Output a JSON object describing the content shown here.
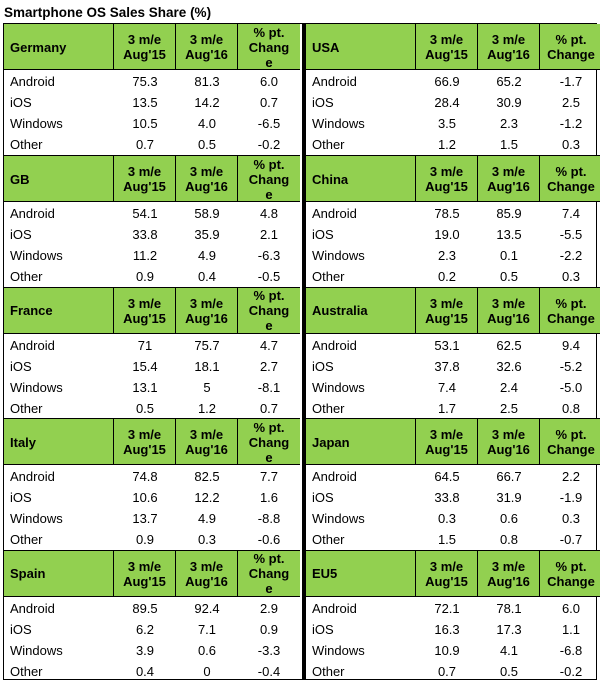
{
  "title": "Smartphone OS Sales Share (%)",
  "headers": {
    "col1_line1": "3 m/e",
    "col1_line2": "Aug'15",
    "col2_line1": "3 m/e",
    "col2_line2": "Aug'16",
    "change_full_line1": "% pt.",
    "change_full_line2": "Change",
    "change_wrap_line1": "% pt.",
    "change_wrap_line2": "Chang",
    "change_wrap_line3": "e"
  },
  "regions": [
    {
      "name": "Germany",
      "rows": [
        [
          "Android",
          "75.3",
          "81.3",
          "6.0"
        ],
        [
          "iOS",
          "13.5",
          "14.2",
          "0.7"
        ],
        [
          "Windows",
          "10.5",
          "4.0",
          "-6.5"
        ],
        [
          "Other",
          "0.7",
          "0.5",
          "-0.2"
        ]
      ]
    },
    {
      "name": "USA",
      "rows": [
        [
          "Android",
          "66.9",
          "65.2",
          "-1.7"
        ],
        [
          "iOS",
          "28.4",
          "30.9",
          "2.5"
        ],
        [
          "Windows",
          "3.5",
          "2.3",
          "-1.2"
        ],
        [
          "Other",
          "1.2",
          "1.5",
          "0.3"
        ]
      ]
    },
    {
      "name": "GB",
      "rows": [
        [
          "Android",
          "54.1",
          "58.9",
          "4.8"
        ],
        [
          "iOS",
          "33.8",
          "35.9",
          "2.1"
        ],
        [
          "Windows",
          "11.2",
          "4.9",
          "-6.3"
        ],
        [
          "Other",
          "0.9",
          "0.4",
          "-0.5"
        ]
      ]
    },
    {
      "name": "China",
      "rows": [
        [
          "Android",
          "78.5",
          "85.9",
          "7.4"
        ],
        [
          "iOS",
          "19.0",
          "13.5",
          "-5.5"
        ],
        [
          "Windows",
          "2.3",
          "0.1",
          "-2.2"
        ],
        [
          "Other",
          "0.2",
          "0.5",
          "0.3"
        ]
      ]
    },
    {
      "name": "France",
      "rows": [
        [
          "Android",
          "71",
          "75.7",
          "4.7"
        ],
        [
          "iOS",
          "15.4",
          "18.1",
          "2.7"
        ],
        [
          "Windows",
          "13.1",
          "5",
          "-8.1"
        ],
        [
          "Other",
          "0.5",
          "1.2",
          "0.7"
        ]
      ]
    },
    {
      "name": "Australia",
      "rows": [
        [
          "Android",
          "53.1",
          "62.5",
          "9.4"
        ],
        [
          "iOS",
          "37.8",
          "32.6",
          "-5.2"
        ],
        [
          "Windows",
          "7.4",
          "2.4",
          "-5.0"
        ],
        [
          "Other",
          "1.7",
          "2.5",
          "0.8"
        ]
      ]
    },
    {
      "name": "Italy",
      "rows": [
        [
          "Android",
          "74.8",
          "82.5",
          "7.7"
        ],
        [
          "iOS",
          "10.6",
          "12.2",
          "1.6"
        ],
        [
          "Windows",
          "13.7",
          "4.9",
          "-8.8"
        ],
        [
          "Other",
          "0.9",
          "0.3",
          "-0.6"
        ]
      ]
    },
    {
      "name": "Japan",
      "rows": [
        [
          "Android",
          "64.5",
          "66.7",
          "2.2"
        ],
        [
          "iOS",
          "33.8",
          "31.9",
          "-1.9"
        ],
        [
          "Windows",
          "0.3",
          "0.6",
          "0.3"
        ],
        [
          "Other",
          "1.5",
          "0.8",
          "-0.7"
        ]
      ]
    },
    {
      "name": "Spain",
      "rows": [
        [
          "Android",
          "89.5",
          "92.4",
          "2.9"
        ],
        [
          "iOS",
          "6.2",
          "7.1",
          "0.9"
        ],
        [
          "Windows",
          "3.9",
          "0.6",
          "-3.3"
        ],
        [
          "Other",
          "0.4",
          "0",
          "-0.4"
        ]
      ]
    },
    {
      "name": "EU5",
      "rows": [
        [
          "Android",
          "72.1",
          "78.1",
          "6.0"
        ],
        [
          "iOS",
          "16.3",
          "17.3",
          "1.1"
        ],
        [
          "Windows",
          "10.9",
          "4.1",
          "-6.8"
        ],
        [
          "Other",
          "0.7",
          "0.5",
          "-0.2"
        ]
      ]
    }
  ]
}
